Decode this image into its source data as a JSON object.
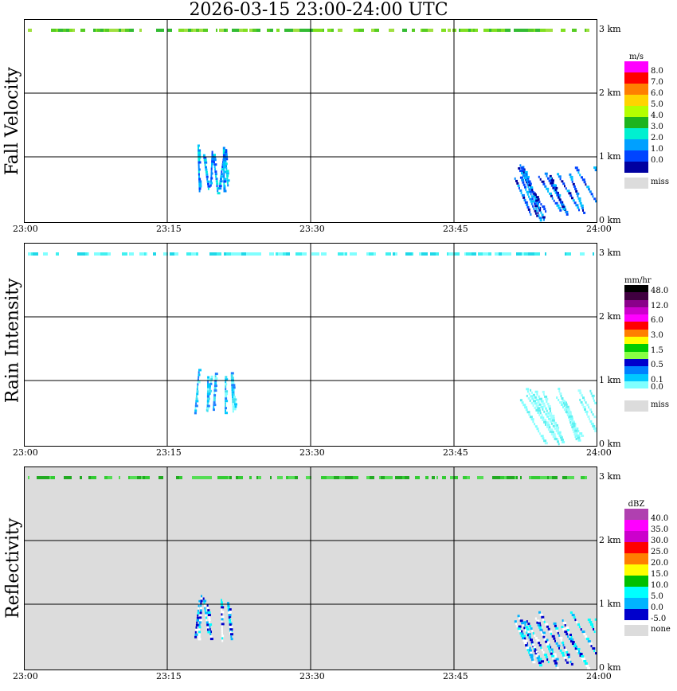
{
  "title": "2026-03-15  23:00-24:00 UTC",
  "x_ticks": [
    "23:00",
    "23:15",
    "23:30",
    "23:45",
    "24:00"
  ],
  "y_ticks": [
    "3 km",
    "2 km",
    "1 km",
    "0 km"
  ],
  "panels": [
    {
      "label": "Fall Velocity",
      "background": "#ffffff",
      "legend_unit": "m/s",
      "legend_colors": [
        "#ff00ff",
        "#ff0000",
        "#ff7f00",
        "#ffd400",
        "#b4ff00",
        "#1db41d",
        "#00f0d0",
        "#00a0ff",
        "#0044ff",
        "#0000a0"
      ],
      "legend_values": [
        "8.0",
        "7.0",
        "6.0",
        "5.0",
        "4.0",
        "3.0",
        "2.0",
        "1.0",
        "0.0"
      ],
      "missing_label": "miss",
      "band_colors": [
        "#7fe020",
        "#55cc22",
        "#a0e040",
        "#33bb33"
      ]
    },
    {
      "label": "Rain Intensity",
      "background": "#ffffff",
      "legend_unit": "mm/hr",
      "legend_colors": [
        "#000000",
        "#400040",
        "#8a008a",
        "#cc00cc",
        "#ff00ff",
        "#ff0000",
        "#ff7f00",
        "#ffff00",
        "#00cc00",
        "#88ff44",
        "#0000cc",
        "#0080ff",
        "#00c8ff",
        "#80ffff",
        "#ffffff"
      ],
      "legend_values": [
        "48.0",
        "",
        "12.0",
        "",
        "6.0",
        "",
        "3.0",
        "",
        "1.5",
        "",
        "0.5",
        "",
        "0.1",
        "0.0"
      ],
      "missing_label": "miss",
      "band_colors": [
        "#40f0f0",
        "#80ffff",
        "#20d8e8"
      ]
    },
    {
      "label": "Reflectivity",
      "background": "#dcdcdc",
      "legend_unit": "dBZ",
      "legend_colors": [
        "#b040b0",
        "#ff00ff",
        "#cc00cc",
        "#ff0000",
        "#ff7f00",
        "#ffff00",
        "#00c000",
        "#00ffff",
        "#00b4ff",
        "#0000cc"
      ],
      "legend_values": [
        "40.0",
        "35.0",
        "30.0",
        "25.0",
        "20.0",
        "15.0",
        "10.0",
        "5.0",
        "0.0",
        "-5.0"
      ],
      "missing_label": "none",
      "band_colors": [
        "#33cc33",
        "#22aa22",
        "#55dd55"
      ]
    }
  ],
  "chart_data": [
    {
      "type": "heatmap",
      "title": "2026-03-15  23:00-24:00 UTC",
      "ylabel": "Fall Velocity",
      "unit": "m/s",
      "x_range": [
        "23:00",
        "24:00"
      ],
      "y_range_km": [
        0,
        3
      ],
      "grid": true,
      "echoes": [
        {
          "t_start": "23:18",
          "t_end": "23:22",
          "h_bottom_km": 0.4,
          "h_top_km": 1.2,
          "value_range": [
            1.0,
            3.0
          ]
        },
        {
          "t_start": "23:51",
          "t_end": "24:00",
          "h_bottom_km": 0.0,
          "h_top_km": 0.9,
          "value_range": [
            0.0,
            2.0
          ]
        },
        {
          "t_start": "23:00",
          "t_end": "24:00",
          "h_bottom_km": 2.95,
          "h_top_km": 3.0,
          "value_range": [
            4.0,
            5.0
          ]
        }
      ]
    },
    {
      "type": "heatmap",
      "ylabel": "Rain Intensity",
      "unit": "mm/hr",
      "x_range": [
        "23:00",
        "24:00"
      ],
      "y_range_km": [
        0,
        3
      ],
      "grid": true,
      "echoes": [
        {
          "t_start": "23:18",
          "t_end": "23:22",
          "h_bottom_km": 0.4,
          "h_top_km": 1.2,
          "value_range": [
            0.1,
            0.5
          ]
        },
        {
          "t_start": "23:51",
          "t_end": "24:00",
          "h_bottom_km": 0.0,
          "h_top_km": 0.9,
          "value_range": [
            0.0,
            0.1
          ]
        },
        {
          "t_start": "23:00",
          "t_end": "24:00",
          "h_bottom_km": 2.95,
          "h_top_km": 3.0,
          "value_range": [
            0.0,
            0.1
          ]
        }
      ]
    },
    {
      "type": "heatmap",
      "ylabel": "Reflectivity",
      "unit": "dBZ",
      "x_range": [
        "23:00",
        "24:00"
      ],
      "y_range_km": [
        0,
        3
      ],
      "grid": true,
      "echoes": [
        {
          "t_start": "23:18",
          "t_end": "23:22",
          "h_bottom_km": 0.4,
          "h_top_km": 1.2,
          "value_range": [
            -5.0,
            10.0
          ]
        },
        {
          "t_start": "23:51",
          "t_end": "24:00",
          "h_bottom_km": 0.0,
          "h_top_km": 0.9,
          "value_range": [
            -5.0,
            10.0
          ]
        },
        {
          "t_start": "23:00",
          "t_end": "24:00",
          "h_bottom_km": 2.95,
          "h_top_km": 3.0,
          "value_range": [
            10.0,
            15.0
          ]
        }
      ]
    }
  ]
}
